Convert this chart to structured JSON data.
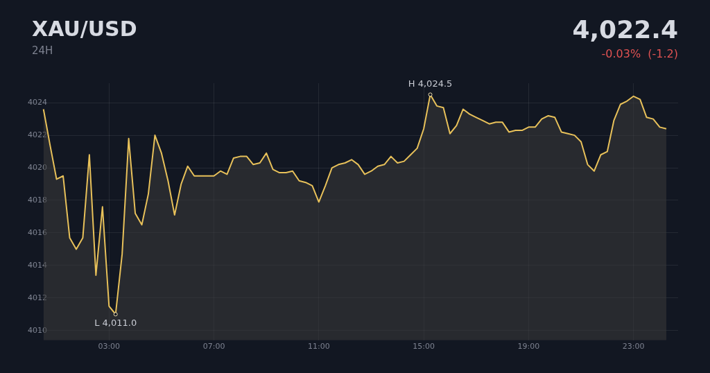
{
  "chart_data": {
    "type": "area",
    "title": "XAU/USD",
    "subtitle": "24H",
    "annotations": [
      "4,022.4",
      "-0.03%  (-1.2)",
      {
        "text": "H 4,024.5",
        "x": 15.25,
        "y": 4024.5
      },
      {
        "text": "L 4,011.0",
        "x": 3.25,
        "y": 4011.0
      }
    ],
    "x": [
      0.5,
      0.75,
      1,
      1.25,
      1.5,
      1.75,
      2,
      2.25,
      2.5,
      2.75,
      3,
      3.25,
      3.5,
      3.75,
      4,
      4.25,
      4.5,
      4.75,
      5,
      5.25,
      5.5,
      5.75,
      6,
      6.25,
      6.5,
      6.75,
      7,
      7.25,
      7.5,
      7.75,
      8,
      8.25,
      8.5,
      8.75,
      9,
      9.25,
      9.5,
      9.75,
      10,
      10.25,
      10.5,
      10.75,
      11,
      11.25,
      11.5,
      11.75,
      12,
      12.25,
      12.5,
      12.75,
      13,
      13.25,
      13.5,
      13.75,
      14,
      14.25,
      14.5,
      14.75,
      15,
      15.25,
      15.5,
      15.75,
      16,
      16.25,
      16.5,
      16.75,
      17,
      17.25,
      17.5,
      17.75,
      18,
      18.25,
      18.5,
      18.75,
      19,
      19.25,
      19.5,
      19.75,
      20,
      20.25,
      20.5,
      20.75,
      21,
      21.25,
      21.5,
      21.75,
      22,
      22.25,
      22.5,
      22.75,
      23,
      23.25,
      23.5,
      23.75,
      24,
      24.25
    ],
    "series": [
      {
        "color": "#e8c15a",
        "values": [
          4023.6,
          4021.4,
          4019.3,
          4019.5,
          4015.7,
          4015.0,
          4015.7,
          4020.8,
          4013.4,
          4017.6,
          4011.5,
          4011.0,
          4014.7,
          4021.8,
          4017.2,
          4016.5,
          4018.4,
          4022.0,
          4020.9,
          4019.2,
          4017.1,
          4019.0,
          4020.1,
          4019.5,
          4019.5,
          4019.5,
          4019.5,
          4019.8,
          4019.6,
          4020.6,
          4020.7,
          4020.7,
          4020.2,
          4020.3,
          4020.9,
          4019.9,
          4019.7,
          4019.7,
          4019.8,
          4019.2,
          4019.1,
          4018.9,
          4017.9,
          4018.9,
          4020.0,
          4020.2,
          4020.3,
          4020.5,
          4020.2,
          4019.6,
          4019.8,
          4020.1,
          4020.2,
          4020.7,
          4020.3,
          4020.4,
          4020.8,
          4021.2,
          4022.4,
          4024.5,
          4023.8,
          4023.7,
          4022.1,
          4022.6,
          4023.6,
          4023.3,
          4023.1,
          4022.9,
          4022.7,
          4022.8,
          4022.8,
          4022.2,
          4022.3,
          4022.3,
          4022.5,
          4022.5,
          4023.0,
          4023.2,
          4023.1,
          4022.2,
          4022.1,
          4022.0,
          4021.6,
          4020.2,
          4019.8,
          4020.8,
          4021.0,
          4022.9,
          4023.9,
          4024.1,
          4024.4,
          4024.2,
          4023.1,
          4023.0,
          4022.5,
          4022.4
        ]
      }
    ],
    "xlim": [
      -0.1,
      24.7
    ],
    "xticks": [
      {
        "value": 3,
        "label": "03:00"
      },
      {
        "value": 7,
        "label": "07:00"
      },
      {
        "value": 11,
        "label": "11:00"
      },
      {
        "value": 15,
        "label": "15:00"
      },
      {
        "value": 19,
        "label": "19:00"
      },
      {
        "value": 23,
        "label": "23:00"
      }
    ],
    "ylim": [
      4009.4,
      4025.2
    ],
    "yticks": [
      4010,
      4012,
      4014,
      4016,
      4018,
      4020,
      4022,
      4024
    ],
    "grid": true,
    "legend": false,
    "marker": "none",
    "line_style": "solid"
  }
}
